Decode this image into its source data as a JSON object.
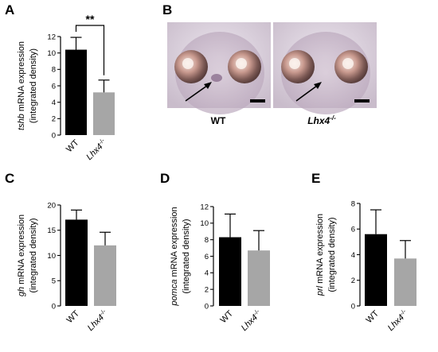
{
  "panel_letters": [
    "A",
    "B",
    "C",
    "D",
    "E"
  ],
  "panel_b": {
    "wt_caption": "WT",
    "mutant_caption_base": "Lhx4",
    "mutant_caption_sup": "-/-"
  },
  "chart_data": [
    {
      "id": "A",
      "type": "bar",
      "categories": [
        "WT",
        "Lhx4-/-"
      ],
      "values": [
        10.4,
        5.2
      ],
      "errors": [
        1.5,
        1.5
      ],
      "bar_colors": [
        "#000000",
        "#a6a6a6"
      ],
      "ylabel_gene": "tshb",
      "ylabel_rest": " mRNA expression",
      "ylabel_line2": "(integrated density)",
      "ylim": [
        0,
        12
      ],
      "yticks": [
        0,
        2,
        4,
        6,
        8,
        10,
        12
      ],
      "significance": "**"
    },
    {
      "id": "C",
      "type": "bar",
      "categories": [
        "WT",
        "Lhx4-/-"
      ],
      "values": [
        17.1,
        12.0
      ],
      "errors": [
        1.9,
        2.6
      ],
      "bar_colors": [
        "#000000",
        "#a6a6a6"
      ],
      "ylabel_gene": "gh",
      "ylabel_rest": " mRNA expression",
      "ylabel_line2": "(integrated density)",
      "ylim": [
        0,
        20
      ],
      "yticks": [
        0,
        5,
        10,
        15,
        20
      ]
    },
    {
      "id": "D",
      "type": "bar",
      "categories": [
        "WT",
        "Lhx4-/-"
      ],
      "values": [
        8.3,
        6.7
      ],
      "errors": [
        2.8,
        2.4
      ],
      "bar_colors": [
        "#000000",
        "#a6a6a6"
      ],
      "ylabel_gene": "pomca",
      "ylabel_rest": " mRNA expression",
      "ylabel_line2": "(integrated density)",
      "ylim": [
        0,
        12
      ],
      "yticks": [
        0,
        2,
        4,
        6,
        8,
        10,
        12
      ]
    },
    {
      "id": "E",
      "type": "bar",
      "categories": [
        "WT",
        "Lhx4-/-"
      ],
      "values": [
        5.6,
        3.7
      ],
      "errors": [
        1.9,
        1.4
      ],
      "bar_colors": [
        "#000000",
        "#a6a6a6"
      ],
      "ylabel_gene": "prl",
      "ylabel_rest": " mRNA expression",
      "ylabel_line2": "(integrated density)",
      "ylim": [
        0,
        8
      ],
      "yticks": [
        0,
        2,
        4,
        6,
        8
      ]
    }
  ]
}
